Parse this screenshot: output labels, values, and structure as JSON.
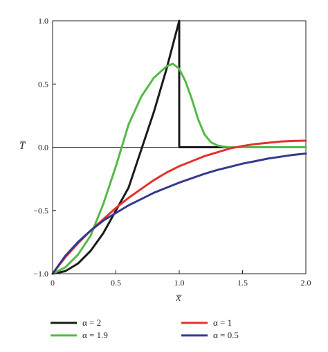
{
  "chart_data": {
    "type": "line",
    "xlabel": "x̅",
    "ylabel": "T̅",
    "xlim": [
      0,
      2.0
    ],
    "ylim": [
      -1.0,
      1.0
    ],
    "xticks": [
      0,
      0.5,
      1.0,
      1.5,
      2.0
    ],
    "xtick_labels": [
      "0",
      "0.5",
      "1.0",
      "1.5",
      "2.0"
    ],
    "yticks": [
      -1.0,
      -0.5,
      0.0,
      0.5,
      1.0
    ],
    "ytick_labels": [
      "−1.0",
      "−0.5",
      "0.0",
      "0.5",
      "1.0"
    ],
    "grid": false,
    "reference_lines": [
      {
        "orientation": "horizontal",
        "y": 0.0,
        "style": "solid"
      },
      {
        "orientation": "vertical",
        "x": 1.0,
        "y_from": 0.0,
        "y_to": 1.0,
        "style": "dashed"
      }
    ],
    "legend_position": "bottom",
    "series": [
      {
        "name": "α = 2",
        "color": "#1a1a1a",
        "x": [
          0,
          0.1,
          0.2,
          0.3,
          0.4,
          0.5,
          0.6,
          0.7,
          0.8,
          0.9,
          1.0,
          1.0,
          1.2,
          1.4,
          1.6,
          1.8,
          2.0
        ],
        "y": [
          -1.0,
          -0.98,
          -0.92,
          -0.82,
          -0.68,
          -0.5,
          -0.32,
          -0.02,
          0.28,
          0.62,
          1.0,
          0.0,
          0.0,
          0.0,
          0.0,
          0.0,
          0.0
        ]
      },
      {
        "name": "α = 1.9",
        "color": "#55b948",
        "x": [
          0,
          0.1,
          0.2,
          0.3,
          0.4,
          0.5,
          0.6,
          0.7,
          0.8,
          0.9,
          0.95,
          1.0,
          1.05,
          1.1,
          1.15,
          1.2,
          1.25,
          1.3,
          1.35,
          1.4,
          1.6,
          1.8,
          2.0
        ],
        "y": [
          -1.0,
          -0.95,
          -0.85,
          -0.7,
          -0.45,
          -0.15,
          0.18,
          0.4,
          0.55,
          0.64,
          0.66,
          0.62,
          0.52,
          0.38,
          0.22,
          0.1,
          0.04,
          0.015,
          0.005,
          0.0,
          0.0,
          0.0,
          0.0
        ]
      },
      {
        "name": "α = 1",
        "color": "#e6302e",
        "x": [
          0,
          0.1,
          0.2,
          0.3,
          0.4,
          0.5,
          0.6,
          0.7,
          0.8,
          0.9,
          1.0,
          1.1,
          1.2,
          1.3,
          1.4,
          1.5,
          1.6,
          1.7,
          1.8,
          1.9,
          2.0
        ],
        "y": [
          -1.0,
          -0.87,
          -0.76,
          -0.66,
          -0.57,
          -0.48,
          -0.4,
          -0.33,
          -0.26,
          -0.2,
          -0.15,
          -0.11,
          -0.07,
          -0.04,
          -0.01,
          0.01,
          0.025,
          0.035,
          0.045,
          0.05,
          0.052
        ]
      },
      {
        "name": "α = 0.5",
        "color": "#343a8c",
        "x": [
          0,
          0.1,
          0.2,
          0.3,
          0.4,
          0.5,
          0.6,
          0.7,
          0.8,
          0.9,
          1.0,
          1.1,
          1.2,
          1.3,
          1.4,
          1.5,
          1.6,
          1.7,
          1.8,
          1.9,
          2.0
        ],
        "y": [
          -1.0,
          -0.86,
          -0.75,
          -0.66,
          -0.58,
          -0.52,
          -0.46,
          -0.41,
          -0.36,
          -0.32,
          -0.28,
          -0.245,
          -0.21,
          -0.18,
          -0.155,
          -0.13,
          -0.11,
          -0.09,
          -0.075,
          -0.06,
          -0.05
        ]
      }
    ]
  }
}
